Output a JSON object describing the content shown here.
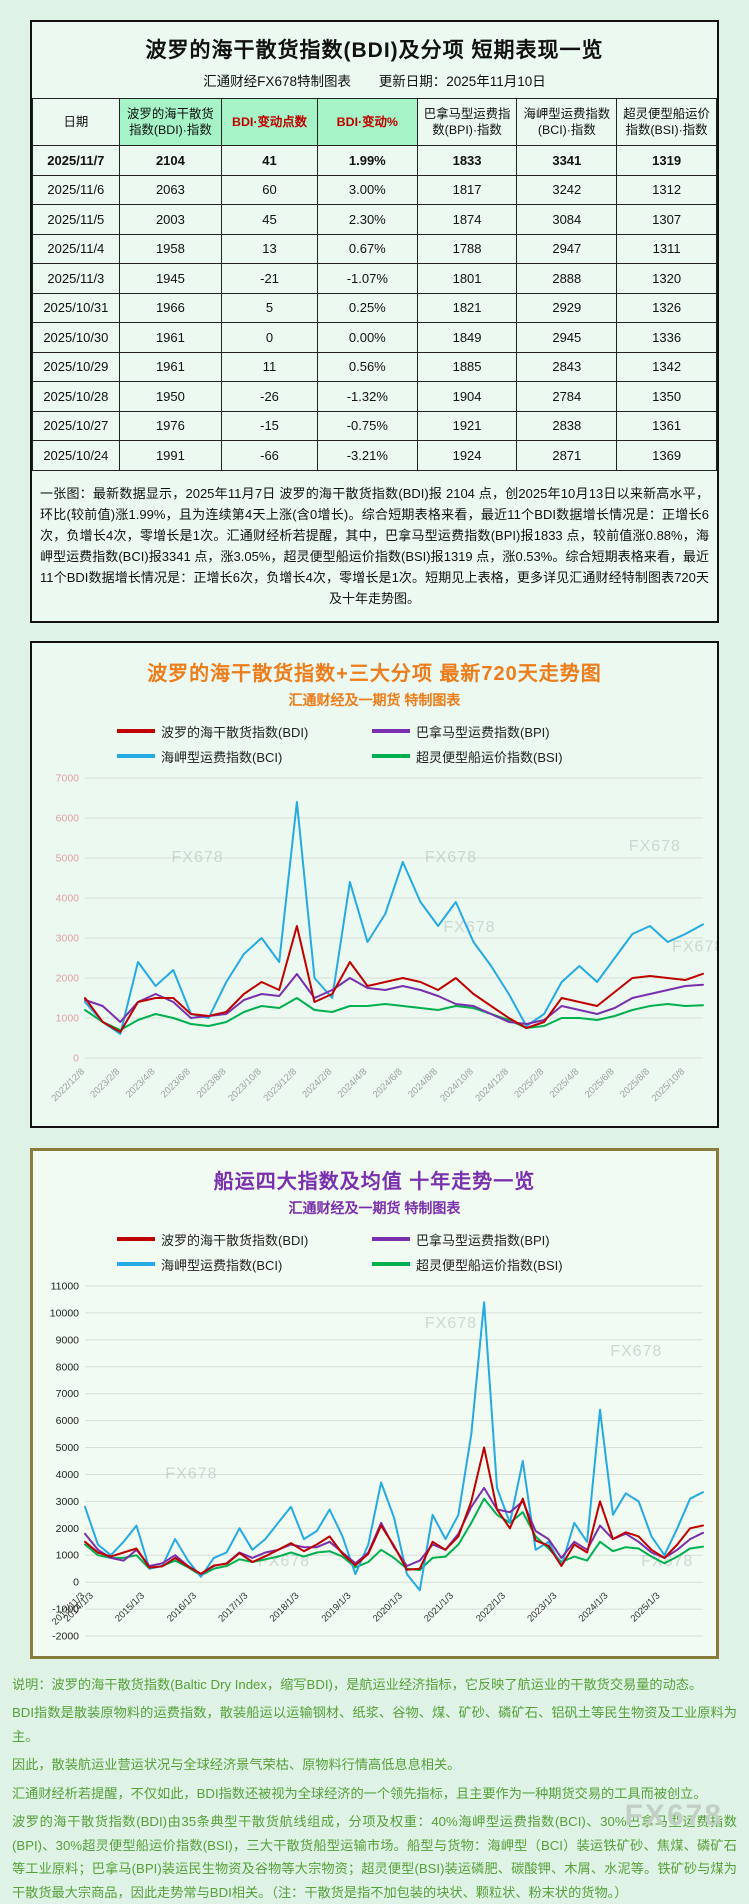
{
  "colors": {
    "bdi_red": "#c00000",
    "bpi_purple": "#7a2fae",
    "bci_blue": "#25aae3",
    "bsi_green": "#00b050",
    "header_green": "#a5f3c6",
    "accent_orange": "#ee7c1a",
    "accent_purple": "#7a2fae",
    "note_green": "#56a03a"
  },
  "watermark": "FX678",
  "table_section": {
    "title": "波罗的海干散货指数(BDI)及分项  短期表现一览",
    "source": "汇通财经FX678特制图表",
    "update_date": "更新日期：2025年11月10日",
    "columns": [
      {
        "label": "日期",
        "style": ""
      },
      {
        "label": "波罗的海干散货指数(BDI)·指数",
        "style": "green"
      },
      {
        "label": "BDI·变动点数",
        "style": "green red"
      },
      {
        "label": "BDI·变动%",
        "style": "green red"
      },
      {
        "label": "巴拿马型运费指数(BPI)·指数",
        "style": ""
      },
      {
        "label": "海岬型运费指数(BCI)·指数",
        "style": ""
      },
      {
        "label": "超灵便型船运价指数(BSI)·指数",
        "style": ""
      }
    ],
    "rows": [
      [
        "2025/11/7",
        "2104",
        "41",
        "1.99%",
        "1833",
        "3341",
        "1319"
      ],
      [
        "2025/11/6",
        "2063",
        "60",
        "3.00%",
        "1817",
        "3242",
        "1312"
      ],
      [
        "2025/11/5",
        "2003",
        "45",
        "2.30%",
        "1874",
        "3084",
        "1307"
      ],
      [
        "2025/11/4",
        "1958",
        "13",
        "0.67%",
        "1788",
        "2947",
        "1311"
      ],
      [
        "2025/11/3",
        "1945",
        "-21",
        "-1.07%",
        "1801",
        "2888",
        "1320"
      ],
      [
        "2025/10/31",
        "1966",
        "5",
        "0.25%",
        "1821",
        "2929",
        "1326"
      ],
      [
        "2025/10/30",
        "1961",
        "0",
        "0.00%",
        "1849",
        "2945",
        "1336"
      ],
      [
        "2025/10/29",
        "1961",
        "11",
        "0.56%",
        "1885",
        "2843",
        "1342"
      ],
      [
        "2025/10/28",
        "1950",
        "-26",
        "-1.32%",
        "1904",
        "2784",
        "1350"
      ],
      [
        "2025/10/27",
        "1976",
        "-15",
        "-0.75%",
        "1921",
        "2838",
        "1361"
      ],
      [
        "2025/10/24",
        "1991",
        "-66",
        "-3.21%",
        "1924",
        "2871",
        "1369"
      ]
    ],
    "summary": "一张图：最新数据显示，2025年11月7日 波罗的海干散货指数(BDI)报 2104 点，创2025年10月13日以来新高水平，环比(较前值)涨1.99%，且为连续第4天上涨(含0增长)。综合短期表格来看，最近11个BDI数据增长情况是：正增长6次，负增长4次，零增长是1次。汇通财经析若提醒，其中，巴拿马型运费指数(BPI)报1833 点，较前值涨0.88%，海岬型运费指数(BCI)报3341 点，涨3.05%，超灵便型船运价指数(BSI)报1319 点，涨0.53%。综合短期表格来看，最近11个BDI数据增长情况是：正增长6次，负增长4次，零增长是1次。短期见上表格，更多详见汇通财经特制图表720天及十年走势图。"
  },
  "chart_data": [
    {
      "type": "line",
      "title": "波罗的海干散货指数+三大分项  最新720天走势图",
      "subtitle": "汇通财经及一期货  特制图表",
      "title_color": "#ee7c1a",
      "legend_position": "top",
      "grid": true,
      "ylim": [
        0,
        7000
      ],
      "ytick_step": 1000,
      "ytick_color": "#dfa0a5",
      "xtick_color": "#a0a0a0",
      "xlabel_mode": "below",
      "categories": [
        "2022/12",
        "2023/1",
        "2023/2",
        "2023/3",
        "2023/4",
        "2023/5",
        "2023/6",
        "2023/7",
        "2023/8",
        "2023/9",
        "2023/10",
        "2023/11",
        "2023/12",
        "2024/1",
        "2024/2",
        "2024/3",
        "2024/4",
        "2024/5",
        "2024/6",
        "2024/7",
        "2024/8",
        "2024/9",
        "2024/10",
        "2024/11",
        "2024/12",
        "2025/1",
        "2025/2",
        "2025/3",
        "2025/4",
        "2025/5",
        "2025/6",
        "2025/7",
        "2025/8",
        "2025/9",
        "2025/10",
        "2025/11"
      ],
      "xtick_labels": [
        "2022/12/8",
        "2023/2/8",
        "2023/4/8",
        "2023/6/8",
        "2023/8/8",
        "2023/10/8",
        "2023/12/8",
        "2024/2/8",
        "2024/4/8",
        "2024/6/8",
        "2024/8/8",
        "2024/10/8",
        "2024/12/8",
        "2025/2/8",
        "2025/4/8",
        "2025/6/8",
        "2025/8/8",
        "2025/10/8"
      ],
      "xtick_f": [
        0.0,
        0.057,
        0.114,
        0.171,
        0.229,
        0.286,
        0.343,
        0.4,
        0.457,
        0.514,
        0.571,
        0.629,
        0.686,
        0.743,
        0.8,
        0.857,
        0.914,
        0.971
      ],
      "legend": [
        [
          "波罗的海干散货指数(BDI)",
          "#c00000"
        ],
        [
          "巴拿马型运费指数(BPI)",
          "#7a2fae"
        ],
        [
          "海岬型运费指数(BCI)",
          "#25aae3"
        ],
        [
          "超灵便型船运价指数(BSI)",
          "#00b050"
        ]
      ],
      "series": [
        {
          "name": "超灵便型船运价指数(BSI)",
          "color": "#00b050",
          "values": [
            1200,
            900,
            700,
            950,
            1100,
            1000,
            850,
            800,
            900,
            1150,
            1300,
            1250,
            1500,
            1200,
            1150,
            1300,
            1300,
            1350,
            1300,
            1250,
            1200,
            1300,
            1250,
            1100,
            950,
            750,
            800,
            1000,
            1000,
            950,
            1050,
            1200,
            1300,
            1350,
            1300,
            1319
          ]
        },
        {
          "name": "海岬型运费指数(BCI)",
          "color": "#25aae3",
          "values": [
            1400,
            900,
            600,
            2400,
            1800,
            2200,
            1100,
            1000,
            1900,
            2600,
            3000,
            2400,
            6400,
            2000,
            1500,
            4400,
            2900,
            3600,
            4900,
            3900,
            3300,
            3900,
            2900,
            2300,
            1600,
            800,
            1100,
            1900,
            2300,
            1900,
            2500,
            3100,
            3300,
            2900,
            3100,
            3341
          ]
        },
        {
          "name": "巴拿马型运费指数(BPI)",
          "color": "#7a2fae",
          "values": [
            1450,
            1300,
            900,
            1400,
            1600,
            1400,
            1000,
            1050,
            1100,
            1450,
            1600,
            1550,
            2100,
            1500,
            1700,
            2000,
            1750,
            1700,
            1800,
            1700,
            1550,
            1350,
            1300,
            1100,
            900,
            850,
            950,
            1300,
            1200,
            1100,
            1250,
            1500,
            1600,
            1700,
            1800,
            1833
          ]
        },
        {
          "name": "波罗的海干散货指数(BDI)",
          "color": "#c00000",
          "values": [
            1500,
            900,
            650,
            1400,
            1500,
            1500,
            1100,
            1050,
            1150,
            1600,
            1900,
            1700,
            3300,
            1400,
            1600,
            2400,
            1800,
            1900,
            2000,
            1900,
            1700,
            2000,
            1600,
            1300,
            1000,
            750,
            900,
            1500,
            1400,
            1300,
            1650,
            2000,
            2050,
            2000,
            1950,
            2104
          ]
        }
      ],
      "watermarks": [
        [
          0.14,
          0.3
        ],
        [
          0.55,
          0.3
        ],
        [
          0.88,
          0.26
        ],
        [
          0.58,
          0.55
        ],
        [
          0.95,
          0.62
        ]
      ]
    },
    {
      "type": "line",
      "title": "船运四大指数及均值 十年走势一览",
      "subtitle": "汇通财经及一期货 特制图表",
      "title_color": "#7a2fae",
      "legend_position": "top",
      "grid": true,
      "ylim": [
        -2000,
        11000
      ],
      "ytick_step": 1000,
      "ytick_color": "#222222",
      "xtick_color": "#333333",
      "xlabel_mode": "at_zero",
      "categories": [
        "2013/11",
        "2014/2",
        "2014/5",
        "2014/8",
        "2014/11",
        "2015/2",
        "2015/5",
        "2015/8",
        "2015/11",
        "2016/2",
        "2016/5",
        "2016/8",
        "2016/11",
        "2017/2",
        "2017/5",
        "2017/8",
        "2017/11",
        "2018/2",
        "2018/5",
        "2018/8",
        "2018/11",
        "2019/2",
        "2019/5",
        "2019/8",
        "2019/11",
        "2020/2",
        "2020/5",
        "2020/8",
        "2020/11",
        "2021/2",
        "2021/5",
        "2021/8",
        "2021/11",
        "2022/2",
        "2022/5",
        "2022/8",
        "2022/11",
        "2023/2",
        "2023/5",
        "2023/8",
        "2023/11",
        "2024/2",
        "2024/5",
        "2024/8",
        "2024/11",
        "2025/2",
        "2025/5",
        "2025/8",
        "2025/11"
      ],
      "xtick_labels": [
        "2013/11/3",
        "2014/1/3",
        "2015/1/3",
        "2016/1/3",
        "2017/1/3",
        "2018/1/3",
        "2019/1/3",
        "2020/1/3",
        "2021/1/3",
        "2022/1/3",
        "2023/1/3",
        "2024/1/3",
        "2025/1/3"
      ],
      "xtick_f": [
        0.0,
        0.014,
        0.097,
        0.181,
        0.264,
        0.347,
        0.431,
        0.514,
        0.597,
        0.681,
        0.764,
        0.847,
        0.931
      ],
      "legend": [
        [
          "波罗的海干散货指数(BDI)",
          "#c00000"
        ],
        [
          "巴拿马型运费指数(BPI)",
          "#7a2fae"
        ],
        [
          "海岬型运费指数(BCI)",
          "#25aae3"
        ],
        [
          "超灵便型船运价指数(BSI)",
          "#00b050"
        ]
      ],
      "series": [
        {
          "name": "超灵便型船运价指数(BSI)",
          "color": "#00b050",
          "values": [
            1400,
            1000,
            900,
            900,
            1000,
            500,
            600,
            800,
            550,
            250,
            500,
            600,
            850,
            750,
            850,
            950,
            1100,
            950,
            1100,
            1150,
            950,
            550,
            750,
            1200,
            900,
            500,
            450,
            900,
            950,
            1400,
            2200,
            3100,
            2500,
            2200,
            2600,
            1700,
            1250,
            750,
            950,
            800,
            1500,
            1150,
            1300,
            1250,
            950,
            700,
            950,
            1250,
            1319
          ]
        },
        {
          "name": "海岬型运费指数(BCI)",
          "color": "#25aae3",
          "values": [
            2800,
            1400,
            1000,
            1500,
            2100,
            500,
            600,
            1600,
            800,
            200,
            900,
            1100,
            2000,
            1200,
            1600,
            2200,
            2800,
            1600,
            1900,
            2700,
            1700,
            300,
            1400,
            3700,
            2400,
            300,
            -300,
            2500,
            1600,
            2500,
            5500,
            10400,
            3500,
            2200,
            4500,
            1200,
            1500,
            600,
            2200,
            1500,
            6400,
            2500,
            3300,
            3000,
            1700,
            1000,
            2000,
            3100,
            3341
          ]
        },
        {
          "name": "巴拿马型运费指数(BPI)",
          "color": "#7a2fae",
          "values": [
            1800,
            1200,
            900,
            800,
            1200,
            600,
            700,
            1000,
            600,
            300,
            600,
            700,
            1100,
            900,
            1100,
            1200,
            1400,
            1300,
            1300,
            1500,
            1100,
            700,
            1100,
            2200,
            1300,
            600,
            800,
            1400,
            1200,
            1800,
            2800,
            3500,
            2700,
            2600,
            3000,
            1900,
            1600,
            900,
            1500,
            1200,
            2100,
            1600,
            1800,
            1500,
            1100,
            900,
            1200,
            1600,
            1833
          ]
        },
        {
          "name": "波罗的海干散货指数(BDI)",
          "color": "#c00000",
          "values": [
            1500,
            1100,
            950,
            1100,
            1250,
            540,
            590,
            900,
            580,
            310,
            620,
            680,
            1080,
            750,
            960,
            1200,
            1450,
            1150,
            1400,
            1700,
            1050,
            630,
            1050,
            2100,
            1350,
            460,
            500,
            1500,
            1200,
            1700,
            3000,
            5000,
            2700,
            2000,
            3100,
            1550,
            1350,
            600,
            1400,
            1100,
            3000,
            1600,
            1850,
            1700,
            1200,
            900,
            1400,
            2000,
            2104
          ]
        }
      ],
      "watermarks": [
        [
          0.55,
          0.12
        ],
        [
          0.85,
          0.2
        ],
        [
          0.28,
          0.8
        ],
        [
          0.9,
          0.8
        ],
        [
          0.13,
          0.55
        ]
      ]
    }
  ],
  "footer": {
    "paragraphs": [
      "说明：波罗的海干散货指数(Baltic Dry Index，缩写BDI)，是航运业经济指标，它反映了航运业的干散货交易量的动态。",
      "BDI指数是散装原物料的运费指数，散装船运以运输钢材、纸浆、谷物、煤、矿砂、磷矿石、铝矾土等民生物资及工业原料为主。",
      "因此，散装航运业营运状况与全球经济景气荣枯、原物料行情高低息息相关。",
      "汇通财经析若提醒，不仅如此，BDI指数还被视为全球经济的一个领先指标，且主要作为一种期货交易的工具而被创立。",
      "波罗的海干散货指数(BDI)由35条典型干散货航线组成，分项及权重：40%海岬型运费指数(BCI)、30%巴拿马型运费指数(BPI)、30%超灵便型船运价指数(BSI)，三大干散货船型运输市场。船型与货物：海岬型（BCI）装运铁矿砂、焦煤、磷矿石等工业原料；巴拿马(BPI)装运民生物资及谷物等大宗物资；超灵便型(BSI)装运磷肥、碳酸钾、木屑、水泥等。铁矿砂与煤为干散货最大宗商品，因此走势常与BDI相关。（注：干散货是指不加包装的块状、颗粒状、粉末状的货物。）"
    ]
  }
}
